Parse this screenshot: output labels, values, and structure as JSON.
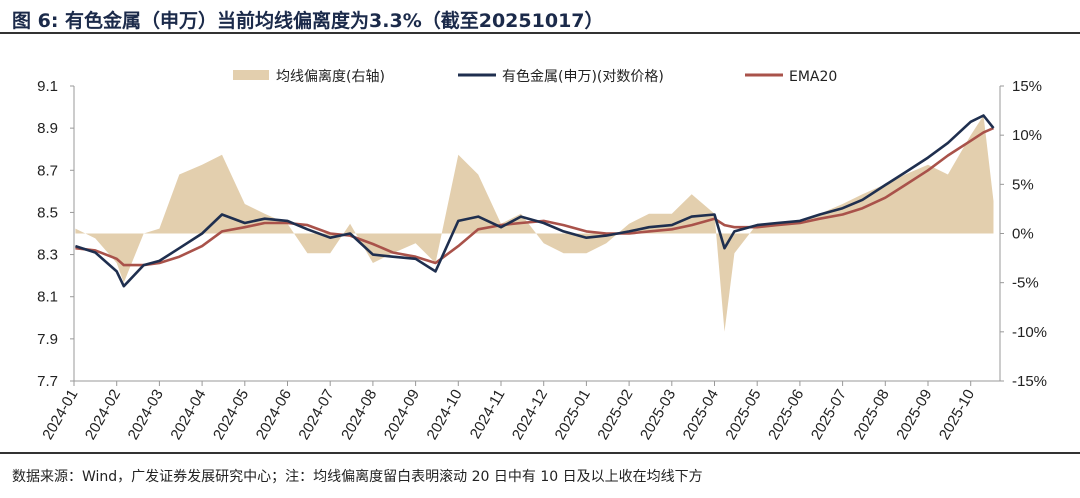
{
  "title": "图 6: 有色金属（申万）当前均线偏离度为3.3%（截至20251017）",
  "footer": "数据来源：Wind，广发证券发展研究中心；注：均线偏离度留白表明滚动 20 日中有 10 日及以上收在均线下方",
  "chart_data": {
    "type": "line",
    "legend_position": "top",
    "grid": false,
    "colors": {
      "deviation": "#e3cfae",
      "price": "#1f2f4f",
      "ema": "#a9524a"
    },
    "y_left": {
      "range": [
        7.7,
        9.1
      ],
      "ticks": [
        "7.7",
        "7.9",
        "8.1",
        "8.3",
        "8.5",
        "8.7",
        "8.9",
        "9.1"
      ]
    },
    "y_right": {
      "range": [
        -15,
        15
      ],
      "ticks": [
        "-15%",
        "-10%",
        "-5%",
        "0%",
        "5%",
        "10%",
        "15%"
      ]
    },
    "x_ticks": [
      "2024-01",
      "2024-02",
      "2024-03",
      "2024-04",
      "2024-05",
      "2024-06",
      "2024-07",
      "2024-08",
      "2024-09",
      "2024-10",
      "2024-11",
      "2024-12",
      "2025-01",
      "2025-02",
      "2025-03",
      "2025-04",
      "2025-05",
      "2025-06",
      "2025-07",
      "2025-08",
      "2025-09",
      "2025-10"
    ],
    "series": [
      {
        "name": "均线偏离度(右轴)",
        "kind": "area",
        "axis": "right"
      },
      {
        "name": "有色金属(申万)(对数价格)",
        "kind": "line",
        "axis": "left"
      },
      {
        "name": "EMA20",
        "kind": "line",
        "axis": "left"
      }
    ],
    "dates": [
      "2024-01-02",
      "2024-01-16",
      "2024-01-31",
      "2024-02-06",
      "2024-02-20",
      "2024-03-01",
      "2024-03-15",
      "2024-04-01",
      "2024-04-15",
      "2024-05-01",
      "2024-05-15",
      "2024-06-01",
      "2024-06-15",
      "2024-07-01",
      "2024-07-15",
      "2024-08-01",
      "2024-08-15",
      "2024-09-01",
      "2024-09-15",
      "2024-10-01",
      "2024-10-15",
      "2024-11-01",
      "2024-11-15",
      "2024-12-01",
      "2024-12-15",
      "2025-01-01",
      "2025-01-15",
      "2025-02-01",
      "2025-02-15",
      "2025-03-01",
      "2025-03-15",
      "2025-04-01",
      "2025-04-08",
      "2025-04-15",
      "2025-05-01",
      "2025-05-15",
      "2025-06-01",
      "2025-06-15",
      "2025-07-01",
      "2025-07-15",
      "2025-08-01",
      "2025-08-15",
      "2025-09-01",
      "2025-09-15",
      "2025-10-01",
      "2025-10-10",
      "2025-10-17"
    ],
    "price": [
      8.34,
      8.31,
      8.22,
      8.15,
      8.25,
      8.27,
      8.33,
      8.4,
      8.49,
      8.45,
      8.47,
      8.46,
      8.42,
      8.38,
      8.4,
      8.3,
      8.29,
      8.28,
      8.22,
      8.46,
      8.48,
      8.43,
      8.48,
      8.45,
      8.41,
      8.38,
      8.39,
      8.41,
      8.43,
      8.44,
      8.48,
      8.49,
      8.33,
      8.41,
      8.44,
      8.45,
      8.46,
      8.49,
      8.52,
      8.56,
      8.63,
      8.69,
      8.76,
      8.83,
      8.93,
      8.96,
      8.9
    ],
    "ema20": [
      8.33,
      8.32,
      8.28,
      8.25,
      8.25,
      8.26,
      8.29,
      8.34,
      8.41,
      8.43,
      8.45,
      8.45,
      8.44,
      8.4,
      8.39,
      8.35,
      8.31,
      8.29,
      8.26,
      8.34,
      8.42,
      8.44,
      8.45,
      8.46,
      8.44,
      8.41,
      8.4,
      8.4,
      8.41,
      8.42,
      8.44,
      8.47,
      8.44,
      8.43,
      8.43,
      8.44,
      8.45,
      8.47,
      8.49,
      8.52,
      8.57,
      8.63,
      8.7,
      8.77,
      8.84,
      8.88,
      8.9
    ],
    "deviation": [
      0.5,
      -0.5,
      -3,
      -5,
      0,
      0.5,
      6,
      7,
      8,
      3,
      2,
      1,
      -2,
      -2,
      1,
      -3,
      -2,
      -1,
      -3,
      8,
      6,
      1,
      2,
      -1,
      -2,
      -2,
      -1,
      1,
      2,
      2,
      4,
      2,
      -10,
      -2,
      1,
      1,
      1,
      2,
      3,
      4,
      5,
      6,
      7,
      6,
      10,
      12,
      3.3
    ]
  }
}
